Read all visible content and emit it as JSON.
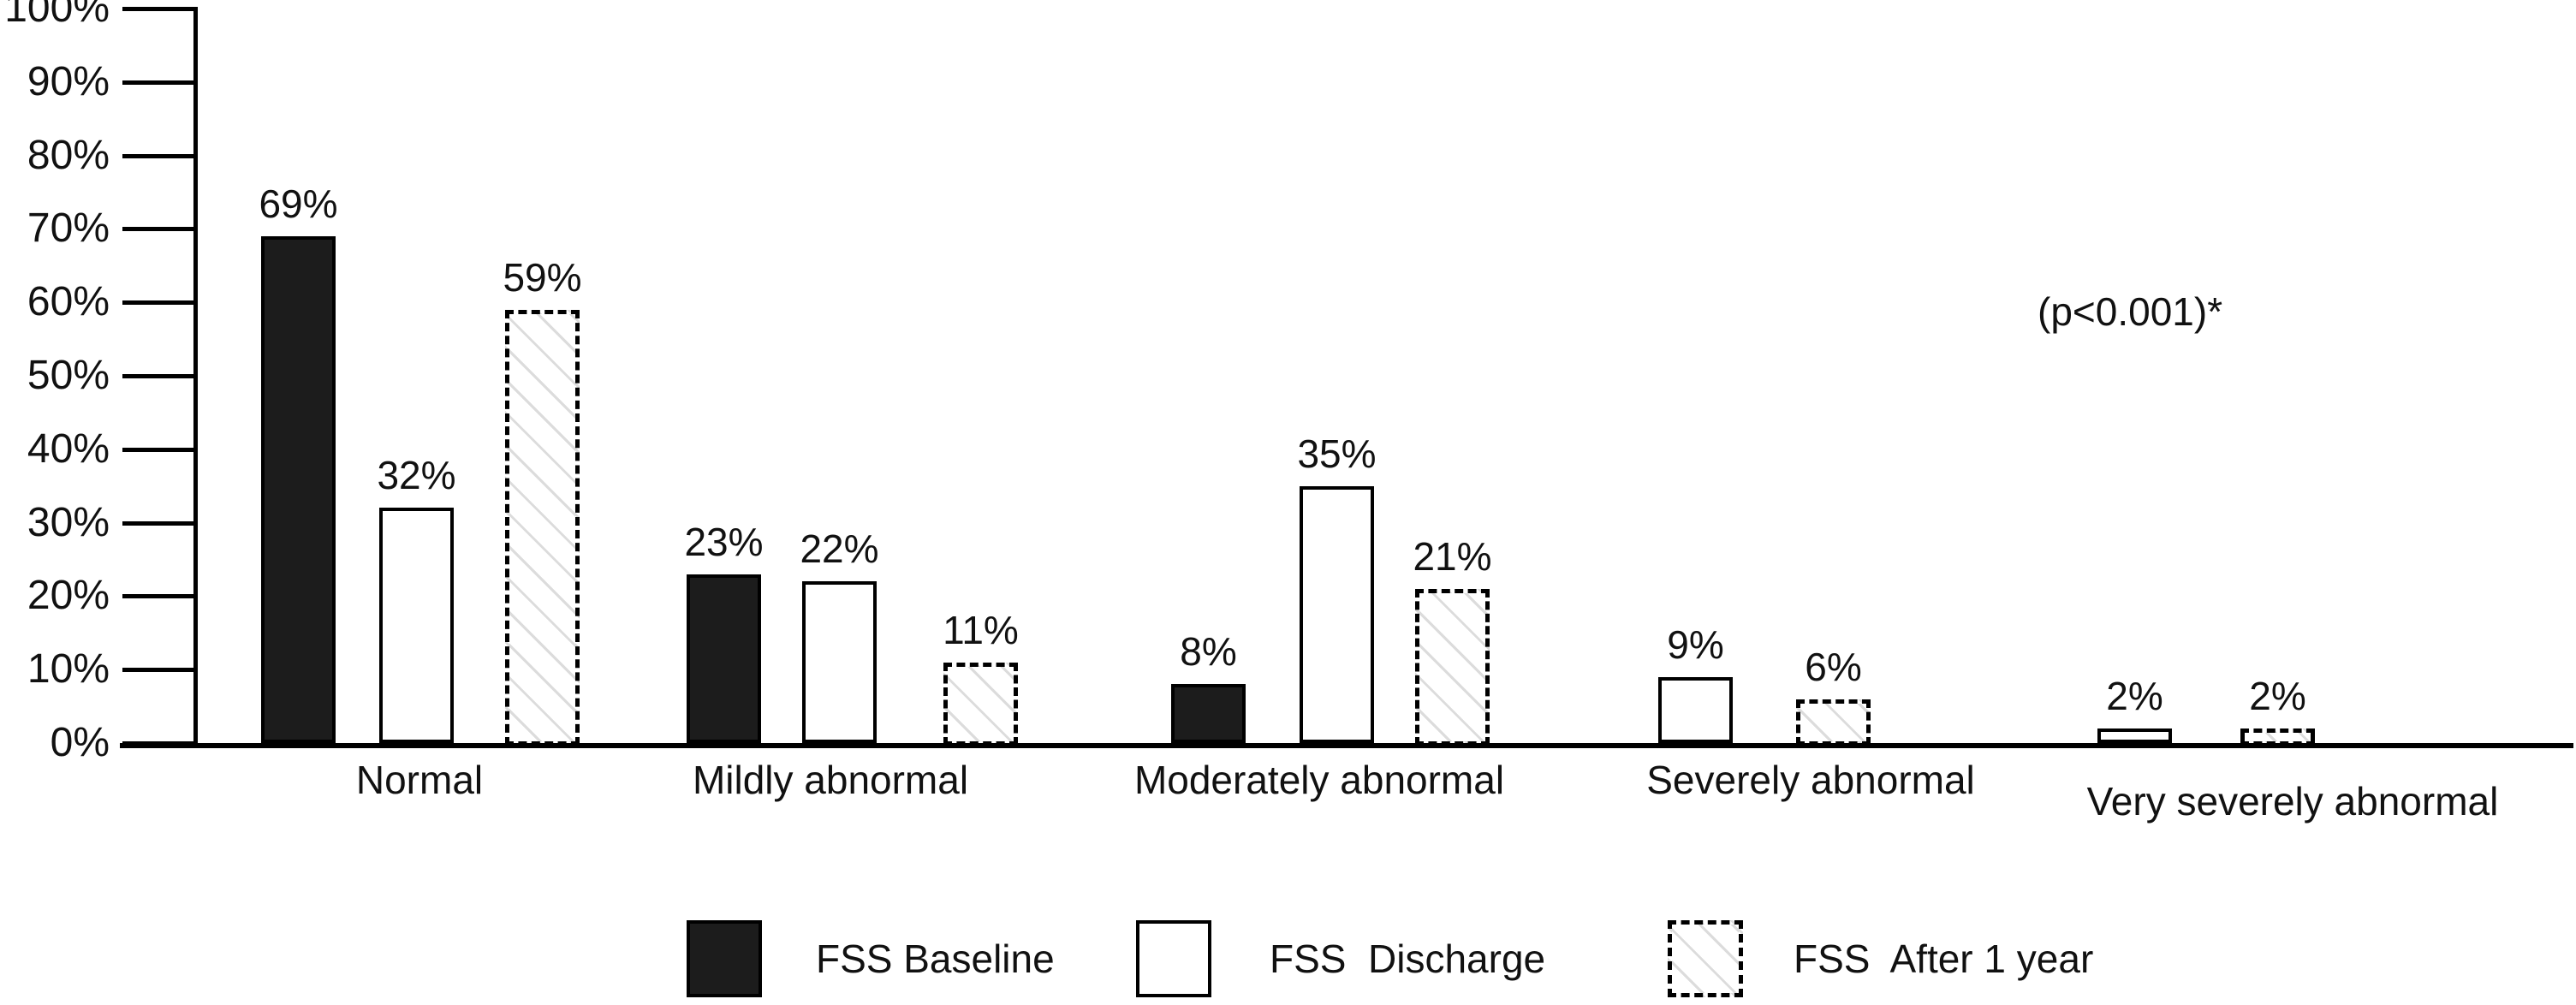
{
  "chart_data": {
    "type": "bar",
    "title": "",
    "xlabel": "",
    "ylabel": "",
    "categories": [
      "Normal",
      "Mildly abnormal",
      "Moderately abnormal",
      "Severely abnormal",
      "Very severely abnormal"
    ],
    "series": [
      {
        "name": "FSS Baseline",
        "swatch": "solid-black",
        "values": [
          69,
          23,
          8,
          null,
          null
        ],
        "labels": [
          "69%",
          "23%",
          "8%",
          null,
          null
        ]
      },
      {
        "name": "FSS  Discharge",
        "swatch": "white-outline",
        "values": [
          32,
          22,
          35,
          9,
          2
        ],
        "labels": [
          "32%",
          "22%",
          "35%",
          "9%",
          "2%"
        ]
      },
      {
        "name": "FSS  After 1 year",
        "swatch": "dashed-hatch",
        "values": [
          59,
          11,
          21,
          6,
          2
        ],
        "labels": [
          "59%",
          "11%",
          "21%",
          "6%",
          "2%"
        ]
      }
    ],
    "y_axis": {
      "min": 0,
      "max": 100,
      "step": 10,
      "tick_labels": [
        "0%",
        "10%",
        "20%",
        "30%",
        "40%",
        "50%",
        "60%",
        "70%",
        "80%",
        "90%",
        "100%"
      ]
    },
    "annotation": "(p<0.001)*",
    "legend_position": "bottom",
    "grid": false,
    "colors": {
      "baseline_fill": "#1c1c1c",
      "discharge_fill": "#ffffff",
      "outline": "#000000",
      "hatch_line": "#dcdcdc",
      "background": "#ffffff"
    }
  }
}
